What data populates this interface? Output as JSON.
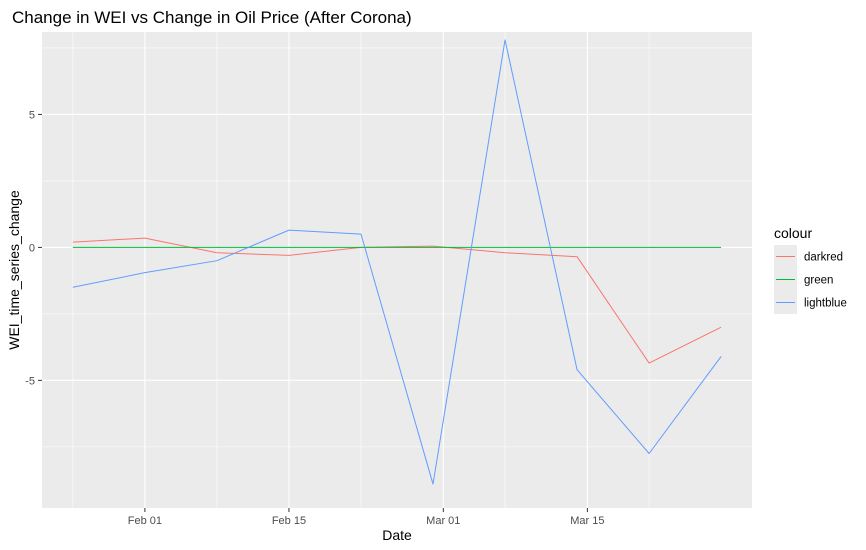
{
  "chart_data": {
    "type": "line",
    "title": "Change in WEI vs Change in Oil Price (After Corona)",
    "xlabel": "Date",
    "ylabel": "WEI_time_series_change",
    "x_dates": [
      "2020-01-25",
      "2020-02-01",
      "2020-02-08",
      "2020-02-15",
      "2020-02-22",
      "2020-02-29",
      "2020-03-07",
      "2020-03-14",
      "2020-03-21",
      "2020-03-28"
    ],
    "xlim": [
      "2020-01-22",
      "2020-03-31"
    ],
    "ylim": [
      -9.8,
      8.1
    ],
    "x_ticks": [
      {
        "date": "2020-02-01",
        "label": "Feb 01"
      },
      {
        "date": "2020-02-15",
        "label": "Feb 15"
      },
      {
        "date": "2020-03-01",
        "label": "Mar 01"
      },
      {
        "date": "2020-03-15",
        "label": "Mar 15"
      }
    ],
    "y_ticks": [
      {
        "value": 5,
        "label": "5"
      },
      {
        "value": 0,
        "label": "0"
      },
      {
        "value": -5,
        "label": "-5"
      }
    ],
    "grid": true,
    "legend": {
      "title": "colour",
      "position": "right"
    },
    "series": [
      {
        "name": "darkred",
        "color": "#F8766D",
        "values": [
          0.2,
          0.35,
          -0.2,
          -0.3,
          0.0,
          0.05,
          -0.2,
          -0.35,
          -4.35,
          -3.0
        ]
      },
      {
        "name": "green",
        "color": "#00BA38",
        "values": [
          0,
          0,
          0,
          0,
          0,
          0,
          0,
          0,
          0,
          0
        ]
      },
      {
        "name": "lightblue",
        "color": "#619CFF",
        "values": [
          -1.5,
          -0.95,
          -0.5,
          0.65,
          0.5,
          -8.9,
          7.8,
          -4.6,
          -7.75,
          -4.1
        ]
      }
    ]
  }
}
